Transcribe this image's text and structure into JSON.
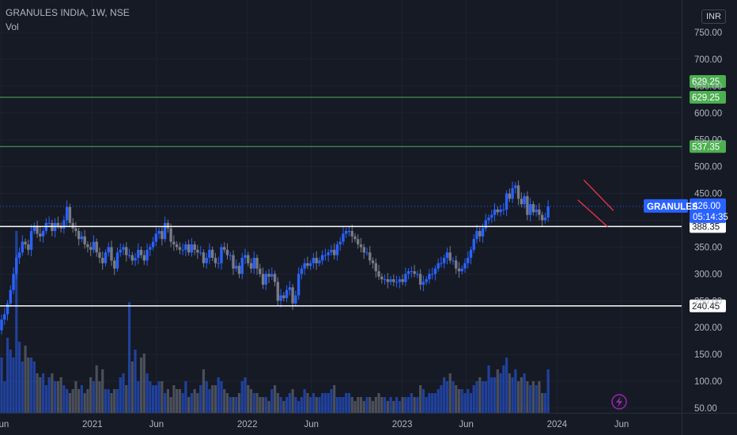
{
  "header": {
    "title": "GRANULES INDIA, 1W, NSE",
    "indicator": "Vol"
  },
  "currency": "INR",
  "colors": {
    "background": "#161a25",
    "grid": "#1f2330",
    "up": "#2962ff",
    "down": "#787b86",
    "resistance": "#4caf50",
    "support": "#ffffff",
    "channel": "#f23645",
    "price_tag": "#2962ff",
    "flash": "#9c27b0"
  },
  "chart_data": {
    "type": "candlestick",
    "symbol": "GRANULES",
    "interval": "1W",
    "exchange": "NSE",
    "last_price": "426.00",
    "last_price_value": 426,
    "countdown": "05:14:35",
    "y_ticks": [
      "750.00",
      "700.00",
      "650.00",
      "600.00",
      "550.00",
      "500.00",
      "450.00",
      "400.00",
      "350.00",
      "300.00",
      "250.00",
      "200.00",
      "150.00",
      "100.00",
      "50.00"
    ],
    "y_tick_values": [
      750,
      700,
      650,
      600,
      550,
      500,
      450,
      400,
      350,
      300,
      250,
      200,
      150,
      100,
      50
    ],
    "ylim": [
      45,
      785
    ],
    "x_ticks": [
      "Jun",
      "2021",
      "Jun",
      "2022",
      "Jun",
      "2023",
      "Jun",
      "2024",
      "Jun"
    ],
    "x_tick_dates": [
      "2020-06-01",
      "2021-01-01",
      "2021-06-01",
      "2022-01-01",
      "2022-06-01",
      "2023-01-01",
      "2023-06-01",
      "2024-01-01",
      "2024-06-01"
    ],
    "start_date": "2020-05-25",
    "horizontal_lines": [
      {
        "label": "629.25",
        "value": 629.25,
        "style": "resistance"
      },
      {
        "label": "537.35",
        "value": 537.35,
        "style": "resistance"
      },
      {
        "label": "388.35",
        "value": 388.35,
        "style": "support"
      },
      {
        "label": "240.45",
        "value": 240.45,
        "style": "support"
      }
    ],
    "channel": {
      "upper": [
        [
          "2024-03-04",
          475
        ],
        [
          "2024-05-13",
          418
        ]
      ],
      "lower": [
        [
          "2024-02-19",
          438
        ],
        [
          "2024-04-29",
          388
        ]
      ]
    },
    "closes": [
      195,
      215,
      225,
      245,
      270,
      300,
      330,
      340,
      360,
      355,
      345,
      380,
      390,
      375,
      370,
      380,
      395,
      395,
      380,
      395,
      390,
      385,
      400,
      425,
      395,
      385,
      380,
      365,
      370,
      355,
      350,
      345,
      360,
      340,
      330,
      320,
      340,
      350,
      325,
      310,
      340,
      345,
      350,
      335,
      335,
      325,
      330,
      345,
      335,
      325,
      345,
      350,
      360,
      375,
      380,
      365,
      395,
      385,
      360,
      355,
      350,
      345,
      345,
      355,
      340,
      355,
      345,
      340,
      340,
      320,
      330,
      345,
      330,
      320,
      320,
      350,
      345,
      335,
      335,
      310,
      315,
      300,
      330,
      335,
      320,
      310,
      330,
      310,
      300,
      280,
      300,
      295,
      300,
      285,
      250,
      260,
      255,
      270,
      275,
      245,
      260,
      300,
      310,
      320,
      315,
      320,
      330,
      320,
      325,
      335,
      335,
      340,
      345,
      335,
      355,
      360,
      375,
      380,
      380,
      370,
      365,
      355,
      350,
      340,
      340,
      325,
      320,
      305,
      295,
      290,
      290,
      285,
      290,
      285,
      285,
      290,
      285,
      300,
      305,
      305,
      300,
      300,
      280,
      285,
      290,
      300,
      300,
      310,
      320,
      320,
      330,
      340,
      325,
      325,
      310,
      305,
      310,
      320,
      330,
      345,
      365,
      380,
      370,
      385,
      400,
      405,
      410,
      420,
      415,
      420,
      420,
      450,
      440,
      460,
      465,
      440,
      430,
      445,
      410,
      430,
      415,
      420,
      410,
      400,
      405,
      426
    ],
    "volume": [
      140,
      70,
      40,
      95,
      80,
      70,
      230,
      90,
      65,
      85,
      70,
      70,
      65,
      50,
      45,
      50,
      35,
      45,
      50,
      40,
      40,
      45,
      35,
      30,
      25,
      30,
      40,
      30,
      35,
      25,
      30,
      45,
      40,
      60,
      40,
      55,
      30,
      30,
      25,
      30,
      30,
      45,
      50,
      35,
      140,
      65,
      80,
      40,
      70,
      75,
      50,
      40,
      35,
      35,
      40,
      40,
      25,
      30,
      20,
      35,
      30,
      30,
      25,
      40,
      20,
      25,
      30,
      25,
      35,
      55,
      40,
      30,
      35,
      35,
      45,
      40,
      30,
      25,
      20,
      20,
      20,
      25,
      40,
      45,
      35,
      30,
      25,
      25,
      20,
      20,
      20,
      15,
      30,
      35,
      25,
      20,
      15,
      20,
      25,
      30,
      20,
      15,
      20,
      30,
      25,
      20,
      25,
      20,
      20,
      25,
      25,
      25,
      30,
      35,
      20,
      20,
      20,
      25,
      25,
      20,
      15,
      20,
      20,
      15,
      20,
      20,
      15,
      20,
      25,
      20,
      20,
      15,
      20,
      15,
      20,
      15,
      20,
      20,
      20,
      25,
      20,
      20,
      35,
      30,
      20,
      25,
      25,
      25,
      30,
      35,
      45,
      40,
      50,
      40,
      35,
      30,
      30,
      25,
      30,
      25,
      35,
      40,
      45,
      40,
      40,
      60,
      45,
      45,
      55,
      50,
      60,
      70,
      50,
      45,
      55,
      40,
      45,
      50,
      40,
      35,
      40,
      35,
      40,
      25,
      25,
      55
    ]
  }
}
